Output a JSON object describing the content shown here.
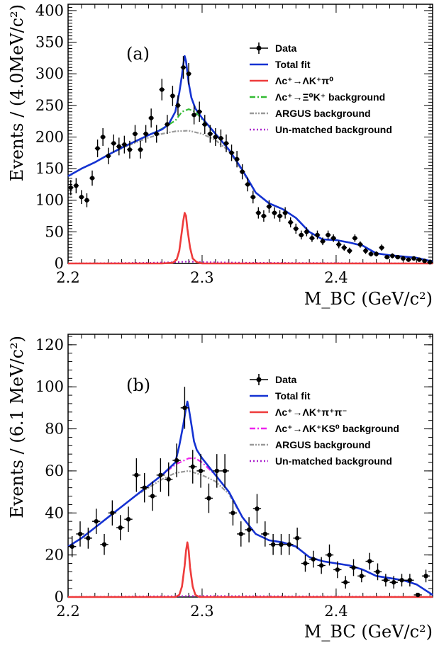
{
  "chart_data": [
    {
      "type": "line",
      "panel_label": "(a)",
      "xlabel": "M_BC (GeV/c²)",
      "ylabel": "Events / (4.0MeV/c²)",
      "xlim": [
        2.2,
        2.472
      ],
      "ylim": [
        0,
        410
      ],
      "x_ticks": [
        2.2,
        2.3,
        2.4
      ],
      "y_ticks": [
        0,
        50,
        100,
        150,
        200,
        250,
        300,
        350,
        400
      ],
      "legend": {
        "placement": "top-right",
        "entries": [
          {
            "label": "Data",
            "style": "points",
            "color": "#000000"
          },
          {
            "label": "Total fit",
            "style": "solid",
            "color": "#1432d2"
          },
          {
            "label": "Λc⁺→ΛK⁺π⁰",
            "style": "solid",
            "color": "#ee3b3b"
          },
          {
            "label": "Λc⁺→Ξ⁰K⁺ background",
            "style": "dashdot",
            "color": "#33bb33"
          },
          {
            "label": "ARGUS background",
            "style": "dashdotdot",
            "color": "#999999"
          },
          {
            "label": "Un-matched background",
            "style": "dotted",
            "color": "#aa22cc"
          }
        ]
      },
      "data_points": {
        "x": [
          2.202,
          2.206,
          2.21,
          2.214,
          2.218,
          2.222,
          2.226,
          2.23,
          2.234,
          2.238,
          2.242,
          2.246,
          2.25,
          2.254,
          2.258,
          2.262,
          2.266,
          2.27,
          2.274,
          2.278,
          2.282,
          2.286,
          2.29,
          2.294,
          2.298,
          2.302,
          2.306,
          2.31,
          2.314,
          2.318,
          2.322,
          2.326,
          2.33,
          2.334,
          2.338,
          2.342,
          2.346,
          2.35,
          2.354,
          2.358,
          2.362,
          2.366,
          2.37,
          2.374,
          2.378,
          2.382,
          2.386,
          2.39,
          2.394,
          2.398,
          2.402,
          2.406,
          2.41,
          2.414,
          2.418,
          2.422,
          2.426,
          2.43,
          2.434,
          2.438,
          2.442,
          2.446,
          2.45,
          2.454,
          2.458,
          2.462,
          2.466,
          2.47
        ],
        "y": [
          120,
          123,
          105,
          100,
          135,
          182,
          200,
          170,
          190,
          185,
          188,
          180,
          205,
          180,
          205,
          230,
          205,
          275,
          220,
          265,
          250,
          310,
          300,
          235,
          240,
          220,
          205,
          200,
          198,
          190,
          175,
          165,
          145,
          125,
          105,
          80,
          75,
          90,
          80,
          75,
          80,
          65,
          55,
          45,
          50,
          40,
          45,
          35,
          45,
          40,
          30,
          25,
          20,
          40,
          30,
          20,
          15,
          15,
          25,
          10,
          12,
          10,
          8,
          6,
          8,
          6,
          4,
          2
        ],
        "yerr": [
          12,
          12,
          11,
          11,
          12,
          14,
          14,
          13,
          14,
          14,
          14,
          14,
          14,
          14,
          14,
          15,
          14,
          17,
          15,
          16,
          16,
          18,
          17,
          15,
          16,
          15,
          14,
          14,
          14,
          14,
          13,
          13,
          12,
          11,
          10,
          9,
          9,
          10,
          9,
          9,
          9,
          8,
          8,
          7,
          7,
          6,
          7,
          6,
          7,
          6,
          6,
          5,
          5,
          6,
          5,
          5,
          4,
          4,
          5,
          3,
          4,
          3,
          3,
          3,
          3,
          3,
          2,
          2
        ]
      },
      "series": [
        {
          "name": "Total fit",
          "x": [
            2.2,
            2.21,
            2.22,
            2.23,
            2.24,
            2.25,
            2.26,
            2.27,
            2.275,
            2.28,
            2.283,
            2.285,
            2.286,
            2.287,
            2.288,
            2.29,
            2.292,
            2.295,
            2.3,
            2.31,
            2.32,
            2.33,
            2.34,
            2.35,
            2.36,
            2.37,
            2.38,
            2.39,
            2.4,
            2.41,
            2.42,
            2.43,
            2.44,
            2.45,
            2.46,
            2.472
          ],
          "y": [
            138,
            150,
            160,
            172,
            183,
            193,
            203,
            212,
            220,
            240,
            270,
            298,
            315,
            328,
            320,
            285,
            262,
            245,
            230,
            205,
            180,
            148,
            112,
            95,
            86,
            72,
            50,
            38,
            37,
            33,
            28,
            16,
            13,
            11,
            9,
            3
          ]
        },
        {
          "name": "Λc⁺→ΛK⁺π⁰",
          "x": [
            2.2,
            2.27,
            2.278,
            2.281,
            2.283,
            2.285,
            2.286,
            2.287,
            2.288,
            2.289,
            2.291,
            2.293,
            2.296,
            2.3,
            2.472
          ],
          "y": [
            0,
            0,
            1,
            6,
            20,
            52,
            68,
            80,
            75,
            55,
            25,
            8,
            2,
            0,
            0
          ]
        },
        {
          "name": "Λc⁺→Ξ⁰K⁺ background",
          "x": [
            2.2,
            2.21,
            2.22,
            2.23,
            2.24,
            2.25,
            2.26,
            2.27,
            2.28,
            2.285,
            2.29,
            2.295,
            2.3,
            2.31,
            2.32,
            2.33,
            2.34,
            2.35,
            2.36,
            2.37,
            2.38,
            2.39,
            2.4,
            2.41,
            2.42,
            2.43,
            2.44,
            2.45,
            2.46,
            2.472
          ],
          "y": [
            138,
            150,
            160,
            172,
            183,
            193,
            203,
            213,
            226,
            240,
            244,
            240,
            228,
            205,
            180,
            148,
            112,
            95,
            86,
            72,
            50,
            38,
            37,
            33,
            28,
            16,
            13,
            11,
            9,
            3
          ]
        },
        {
          "name": "ARGUS background",
          "x": [
            2.2,
            2.21,
            2.22,
            2.23,
            2.24,
            2.25,
            2.26,
            2.27,
            2.28,
            2.29,
            2.3,
            2.31,
            2.32,
            2.33,
            2.34,
            2.35,
            2.36,
            2.37,
            2.38,
            2.39,
            2.4,
            2.41,
            2.42,
            2.43,
            2.44,
            2.45,
            2.46,
            2.472
          ],
          "y": [
            138,
            150,
            160,
            172,
            182,
            191,
            199,
            205,
            209,
            210,
            205,
            195,
            178,
            146,
            112,
            95,
            86,
            72,
            50,
            38,
            37,
            33,
            28,
            16,
            13,
            11,
            9,
            3
          ]
        },
        {
          "name": "Un-matched background",
          "x": [
            2.2,
            2.26,
            2.28,
            2.29,
            2.3,
            2.34,
            2.472
          ],
          "y": [
            0,
            1,
            2,
            3,
            2,
            1,
            0
          ]
        }
      ]
    },
    {
      "type": "line",
      "panel_label": "(b)",
      "xlabel": "M_BC (GeV/c²)",
      "ylabel": "Events / (6.1 MeV/c²)",
      "xlim": [
        2.2,
        2.472
      ],
      "ylim": [
        0,
        125
      ],
      "x_ticks": [
        2.2,
        2.3,
        2.4
      ],
      "y_ticks": [
        0,
        20,
        40,
        60,
        80,
        100,
        120
      ],
      "legend": {
        "placement": "top-right",
        "entries": [
          {
            "label": "Data",
            "style": "points",
            "color": "#000000"
          },
          {
            "label": "Total fit",
            "style": "solid",
            "color": "#1432d2"
          },
          {
            "label": "Λc⁺→ΛK⁺π⁺π⁻",
            "style": "solid",
            "color": "#ee3b3b"
          },
          {
            "label": "Λc⁺→ΛK⁺KS⁰ background",
            "style": "dashdot",
            "color": "#ee22ee"
          },
          {
            "label": "ARGUS background",
            "style": "dashdotdot",
            "color": "#999999"
          },
          {
            "label": "Un-matched background",
            "style": "dotted",
            "color": "#aa22cc"
          }
        ]
      },
      "data_points": {
        "x": [
          2.203,
          2.209,
          2.215,
          2.221,
          2.227,
          2.233,
          2.239,
          2.245,
          2.251,
          2.257,
          2.263,
          2.269,
          2.275,
          2.281,
          2.287,
          2.293,
          2.299,
          2.305,
          2.311,
          2.317,
          2.323,
          2.329,
          2.335,
          2.341,
          2.347,
          2.353,
          2.359,
          2.365,
          2.371,
          2.377,
          2.383,
          2.389,
          2.395,
          2.401,
          2.407,
          2.413,
          2.419,
          2.425,
          2.431,
          2.437,
          2.443,
          2.449,
          2.455,
          2.461,
          2.467
        ],
        "y": [
          24,
          30,
          28,
          36,
          25,
          40,
          33,
          37,
          58,
          52,
          48,
          58,
          56,
          65,
          90,
          62,
          60,
          47,
          60,
          60,
          40,
          30,
          32,
          42,
          30,
          25,
          25,
          25,
          28,
          16,
          18,
          15,
          20,
          13,
          7,
          14,
          10,
          17,
          12,
          8,
          7,
          8,
          8,
          1,
          10
        ],
        "yerr": [
          5,
          6,
          5,
          6,
          5,
          6,
          6,
          6,
          8,
          7,
          7,
          8,
          8,
          8,
          10,
          8,
          8,
          7,
          8,
          8,
          6,
          6,
          6,
          7,
          6,
          5,
          5,
          5,
          5,
          4,
          4,
          4,
          5,
          4,
          3,
          4,
          3,
          4,
          4,
          3,
          3,
          3,
          3,
          1,
          3
        ]
      },
      "series": [
        {
          "name": "Total fit",
          "x": [
            2.2,
            2.21,
            2.22,
            2.23,
            2.24,
            2.25,
            2.26,
            2.27,
            2.275,
            2.28,
            2.283,
            2.286,
            2.288,
            2.289,
            2.29,
            2.292,
            2.294,
            2.296,
            2.3,
            2.31,
            2.32,
            2.33,
            2.34,
            2.35,
            2.36,
            2.37,
            2.38,
            2.39,
            2.4,
            2.41,
            2.42,
            2.43,
            2.44,
            2.45,
            2.46,
            2.472
          ],
          "y": [
            24,
            28,
            33,
            38,
            43,
            48,
            53,
            58,
            61,
            64,
            72,
            82,
            90,
            93,
            90,
            82,
            74,
            70,
            66,
            58,
            50,
            38,
            30,
            27,
            26,
            24,
            19,
            17,
            16,
            15,
            13,
            10,
            9,
            8,
            6,
            1
          ]
        },
        {
          "name": "Λc⁺→ΛK⁺π⁺π⁻",
          "x": [
            2.2,
            2.28,
            2.283,
            2.285,
            2.287,
            2.288,
            2.289,
            2.29,
            2.291,
            2.293,
            2.295,
            2.298,
            2.472
          ],
          "y": [
            0,
            0,
            1,
            5,
            15,
            22,
            26,
            22,
            14,
            5,
            1,
            0,
            0
          ]
        },
        {
          "name": "Λc⁺→ΛK⁺KS⁰ background",
          "x": [
            2.2,
            2.21,
            2.22,
            2.23,
            2.24,
            2.25,
            2.26,
            2.27,
            2.28,
            2.29,
            2.295,
            2.3,
            2.31,
            2.32,
            2.33,
            2.34,
            2.35,
            2.36,
            2.37,
            2.38,
            2.39,
            2.4,
            2.41,
            2.42,
            2.43,
            2.44,
            2.45,
            2.46,
            2.472
          ],
          "y": [
            24,
            28,
            33,
            38,
            43,
            48,
            53,
            58,
            63,
            66,
            66,
            64,
            58,
            50,
            38,
            30,
            27,
            26,
            24,
            19,
            17,
            16,
            15,
            13,
            10,
            9,
            8,
            6,
            1
          ]
        },
        {
          "name": "ARGUS background",
          "x": [
            2.2,
            2.21,
            2.22,
            2.23,
            2.24,
            2.25,
            2.26,
            2.27,
            2.28,
            2.29,
            2.3,
            2.31,
            2.32,
            2.33,
            2.34,
            2.35,
            2.36,
            2.37,
            2.38,
            2.39,
            2.4,
            2.41,
            2.42,
            2.43,
            2.44,
            2.45,
            2.46,
            2.472
          ],
          "y": [
            24,
            28,
            33,
            38,
            43,
            48,
            52,
            56,
            59,
            60,
            58,
            55,
            49,
            38,
            30,
            27,
            26,
            24,
            19,
            17,
            16,
            15,
            13,
            10,
            9,
            8,
            6,
            1
          ]
        },
        {
          "name": "Un-matched background",
          "x": [
            2.2,
            2.3,
            2.472
          ],
          "y": [
            0,
            0.5,
            0
          ]
        }
      ]
    }
  ]
}
